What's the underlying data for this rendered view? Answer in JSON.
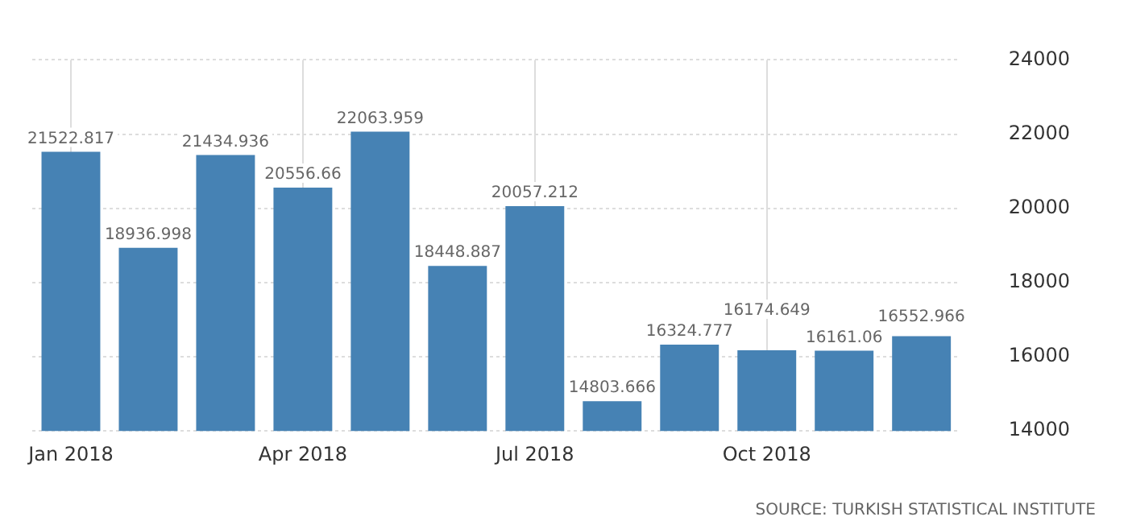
{
  "chart_data": {
    "type": "bar",
    "categories": [
      "Jan 2018",
      null,
      null,
      "Apr 2018",
      null,
      null,
      "Jul 2018",
      null,
      null,
      "Oct 2018",
      null,
      null
    ],
    "values": [
      21522.817,
      18936.998,
      21434.936,
      20556.66,
      22063.959,
      18448.887,
      20057.212,
      14803.666,
      16324.777,
      16174.649,
      16161.06,
      16552.966
    ],
    "color": "#4682b4",
    "ylim": [
      14000,
      24000
    ],
    "yticks": [
      14000,
      16000,
      18000,
      20000,
      22000,
      24000
    ],
    "grid": true,
    "data_labels": true,
    "annotations": [
      "SOURCE: TURKISH STATISTICAL INSTITUTE"
    ]
  }
}
